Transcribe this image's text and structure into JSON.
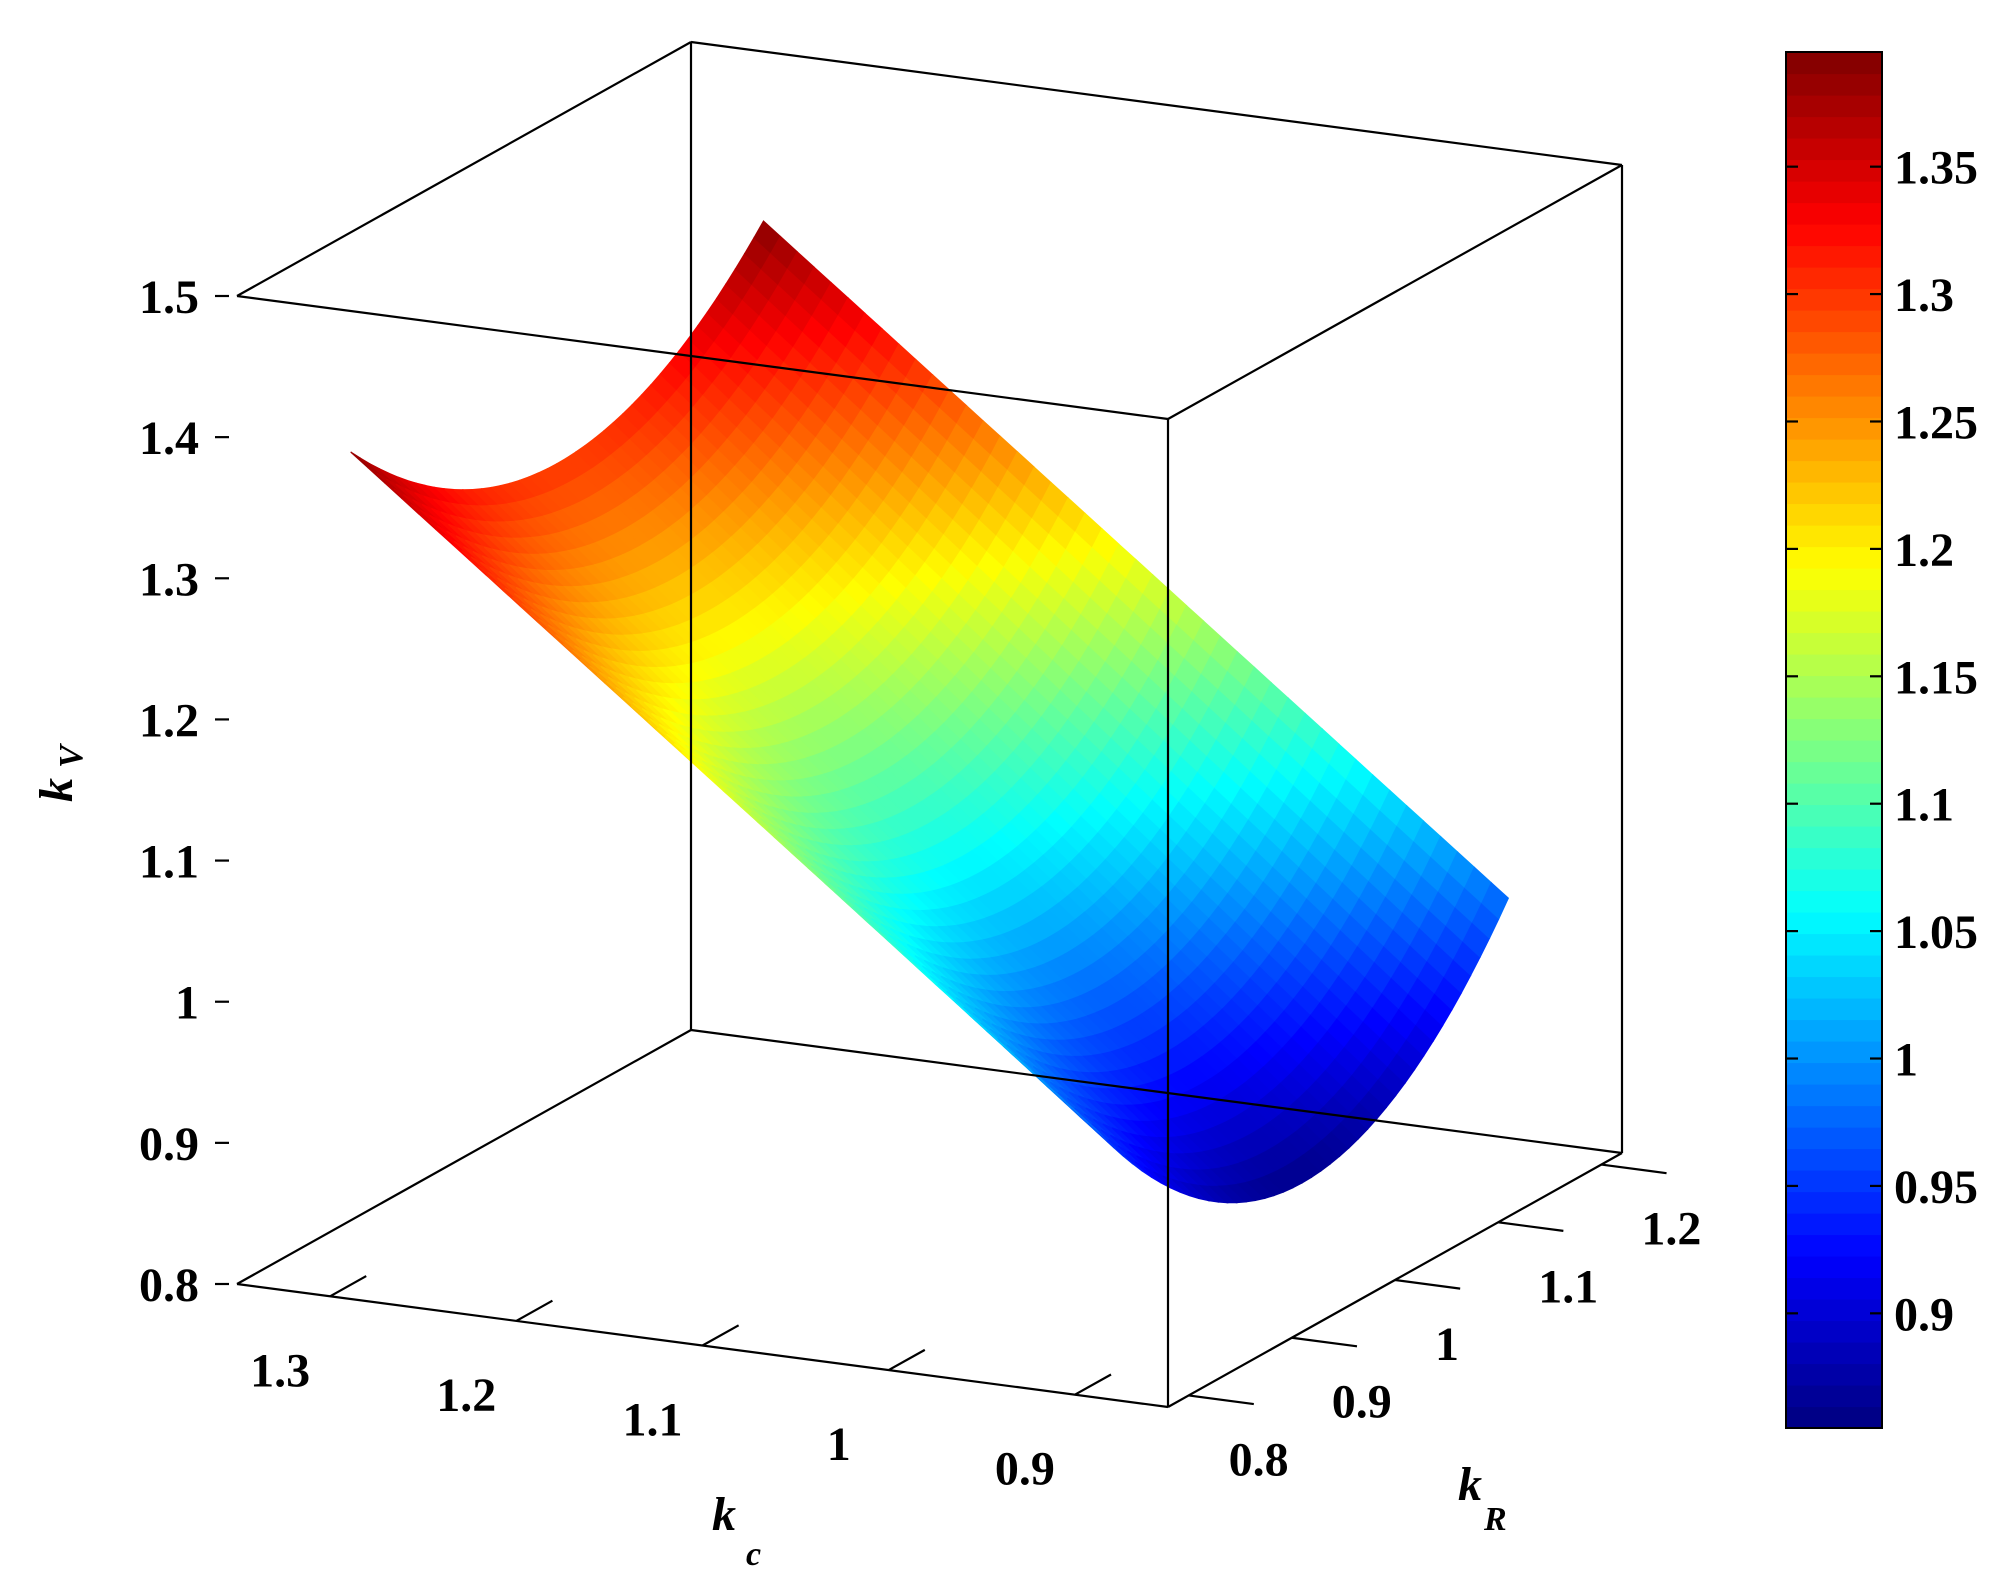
{
  "chart_data": {
    "type": "surface3d",
    "x_axis": {
      "label_main": "k",
      "label_sub": "c",
      "ticks": [
        "1.3",
        "1.2",
        "1.1",
        "1",
        "0.9"
      ],
      "tick_values": [
        1.3,
        1.2,
        1.1,
        1.0,
        0.9
      ],
      "range": [
        0.85,
        1.35
      ]
    },
    "y_axis": {
      "label_main": "k",
      "label_sub": "R",
      "ticks": [
        "0.8",
        "0.9",
        "1",
        "1.1",
        "1.2"
      ],
      "tick_values": [
        0.8,
        0.9,
        1.0,
        1.1,
        1.2
      ],
      "range": [
        0.78,
        1.22
      ]
    },
    "z_axis": {
      "label_main": "k",
      "label_sub": "V",
      "ticks": [
        "0.8",
        "0.9",
        "1",
        "1.1",
        "1.2",
        "1.3",
        "1.4",
        "1.5"
      ],
      "tick_values": [
        0.8,
        0.9,
        1.0,
        1.1,
        1.2,
        1.3,
        1.4,
        1.5
      ],
      "range": [
        0.8,
        1.5
      ]
    },
    "surface": {
      "description_values": {
        "corner_kc_1.3_kR_0.8": 1.39,
        "corner_kc_1.3_kR_1.2": 1.39,
        "min_at_kc_1.3_kR_1.0": 1.3,
        "corner_kc_0.9_kR_0.8": 0.98,
        "corner_kc_0.9_kR_1.2": 0.98,
        "min_at_kc_0.9_kR_1.0": 0.86
      }
    },
    "colorbar": {
      "ticks": [
        "0.9",
        "0.95",
        "1",
        "1.05",
        "1.1",
        "1.15",
        "1.2",
        "1.25",
        "1.3",
        "1.35"
      ],
      "tick_values": [
        0.9,
        0.95,
        1.0,
        1.05,
        1.1,
        1.15,
        1.2,
        1.25,
        1.3,
        1.35
      ],
      "range": [
        0.855,
        1.395
      ],
      "colormap": "jet"
    }
  }
}
